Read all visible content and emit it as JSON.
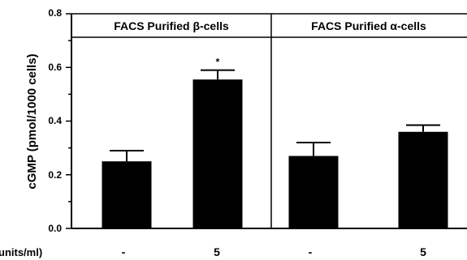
{
  "chart_data": {
    "type": "bar",
    "ylabel": "cGMP (pmol/1000 cells)",
    "xlabel": "units/ml)",
    "ylim": [
      0,
      0.8
    ],
    "yticks": [
      "0.0",
      "0.2",
      "0.4",
      "0.6",
      "0.8"
    ],
    "panels": [
      {
        "title": "FACS Purified β-cells",
        "categories": [
          "-",
          "5"
        ],
        "values": [
          0.25,
          0.555
        ],
        "errors": [
          0.04,
          0.035
        ],
        "significance": [
          "",
          "*"
        ]
      },
      {
        "title": "FACS Purified α-cells",
        "categories": [
          "-",
          "5"
        ],
        "values": [
          0.27,
          0.36
        ],
        "errors": [
          0.05,
          0.025
        ],
        "significance": [
          "",
          ""
        ]
      }
    ],
    "bar_color": "#000000",
    "grid": false,
    "legend": "none"
  }
}
